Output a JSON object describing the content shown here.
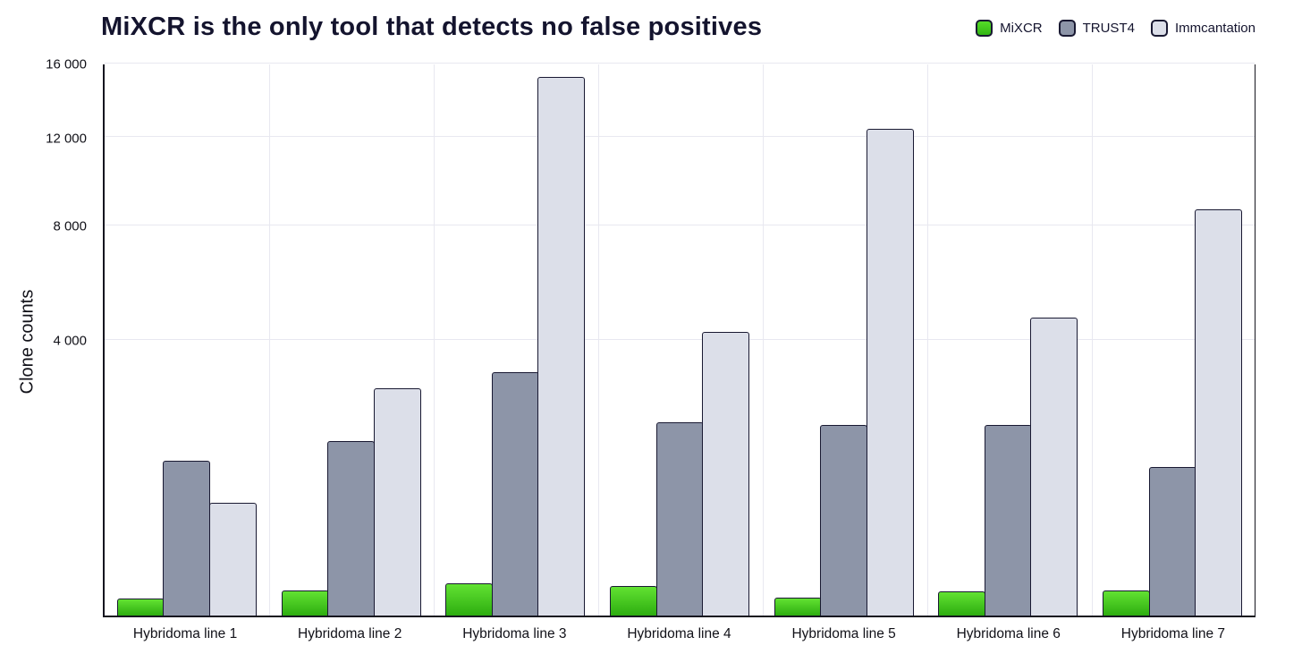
{
  "title": "MiXCR is the only tool that detects no false positives",
  "ylabel": "Clone counts",
  "legend": [
    {
      "label": "MiXCR",
      "color": "#3ecb1e"
    },
    {
      "label": "TRUST4",
      "color": "#8d95a8"
    },
    {
      "label": "Immcantation",
      "color": "#dcdfe9"
    }
  ],
  "chart_data": {
    "type": "bar",
    "title": "MiXCR is the only tool that detects no false positives",
    "xlabel": "",
    "ylabel": "Clone counts",
    "scale": "sqrt",
    "grid": true,
    "legend_position": "top-right",
    "ylim": [
      0,
      16000
    ],
    "yticks": [
      4000,
      8000,
      12000,
      16000
    ],
    "ytick_labels": [
      "4 000",
      "8 000",
      "12 000",
      "16 000"
    ],
    "categories": [
      "Hybridoma line 1",
      "Hybridoma line 2",
      "Hybridoma line 3",
      "Hybridoma line 4",
      "Hybridoma line 5",
      "Hybridoma line 6",
      "Hybridoma line 7"
    ],
    "series": [
      {
        "name": "MiXCR",
        "gradient_top": "#62e232",
        "gradient_bottom": "#2dad10",
        "values": [
          15,
          33,
          55,
          45,
          17,
          30,
          33
        ]
      },
      {
        "name": "TRUST4",
        "color": "#8d95a8",
        "values": [
          1250,
          1600,
          3100,
          1950,
          1900,
          1900,
          1150
        ]
      },
      {
        "name": "Immcantation",
        "color": "#dcdfe9",
        "values": [
          670,
          2700,
          15200,
          4200,
          12400,
          4650,
          8650
        ]
      }
    ]
  }
}
